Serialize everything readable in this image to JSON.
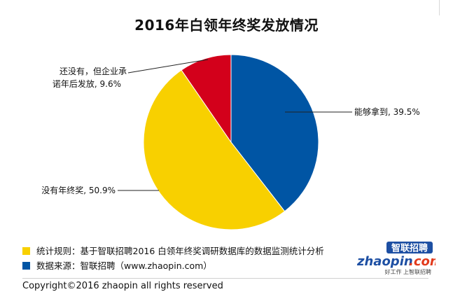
{
  "chart_data": {
    "type": "pie",
    "title": "2016年白领年终奖发放情况",
    "slices": [
      {
        "label": "能够拿到",
        "value": 39.5,
        "color": "#0055a4",
        "display": "能够拿到, 39.5%"
      },
      {
        "label": "没有年终奖",
        "value": 50.9,
        "color": "#f8d000",
        "display": "没有年终奖, 50.9%"
      },
      {
        "label": "还没有，但企业承诺年后发放",
        "value": 9.6,
        "color": "#d3001b",
        "display_lines": [
          "还没有，但企业承",
          "诺年后发放, 9.6%"
        ]
      }
    ]
  },
  "footnotes": [
    {
      "text": "统计规则：基于智联招聘2016 白领年终奖调研数据库的数据监测统计分析",
      "color": "#f8d000"
    },
    {
      "text": "数据来源：智联招聘（www.zhaopin.com）",
      "color": "#0055a4"
    }
  ],
  "logo": {
    "cn": "智联招聘",
    "word": "zhaopin",
    "dotcom": ".com",
    "tagline": "好工作 上智联招聘"
  },
  "copyright": "Copyright©2016 zhaopin all rights reserved"
}
